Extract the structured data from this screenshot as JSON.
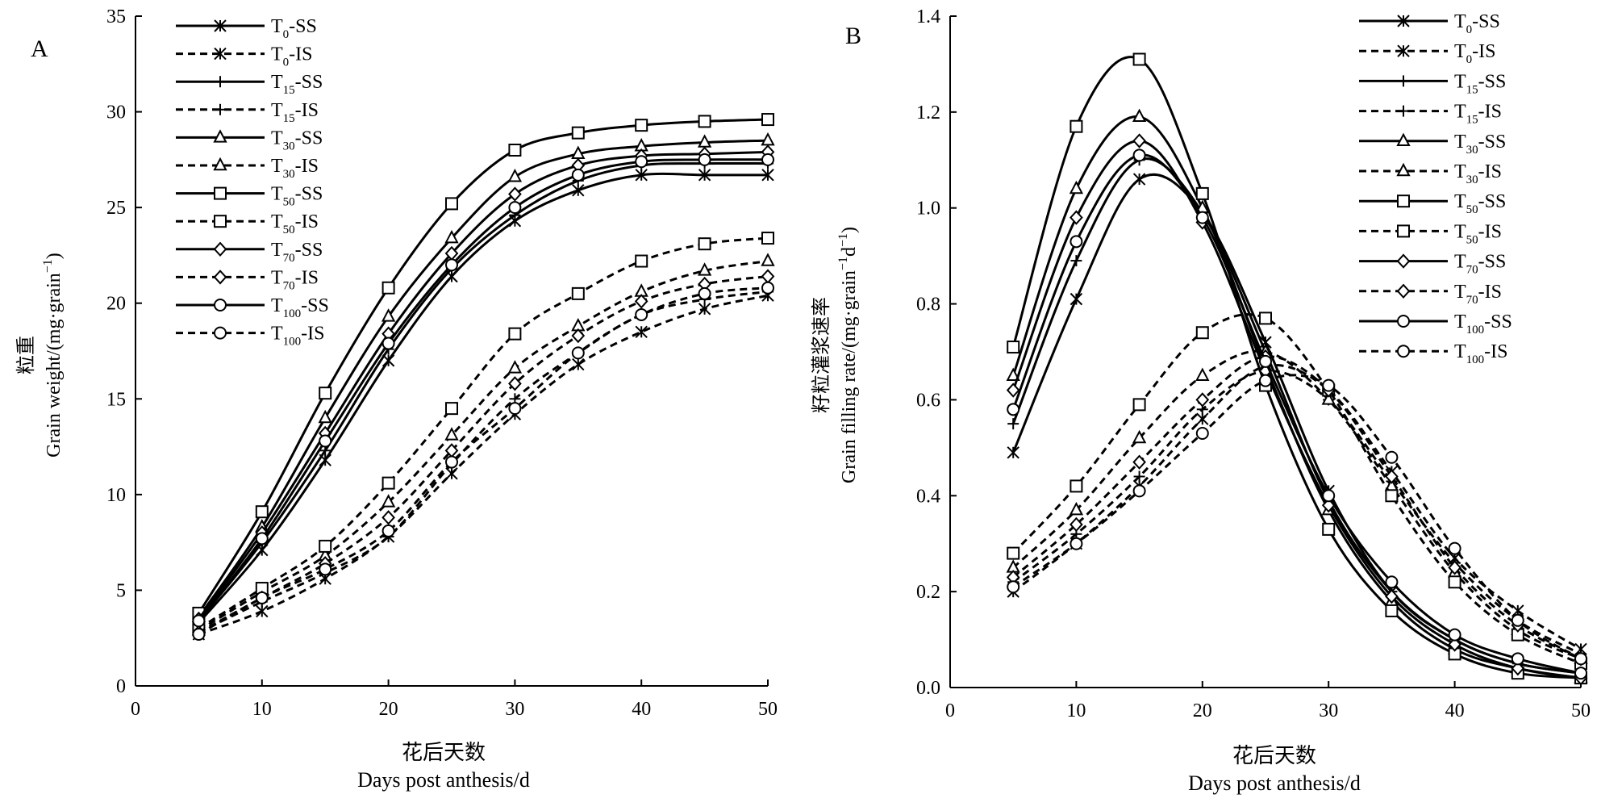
{
  "figure": {
    "panel_a_label": "A",
    "panel_b_label": "B"
  },
  "legend_entries": [
    {
      "base": "T",
      "sub": "0",
      "suffix": "-SS"
    },
    {
      "base": "T",
      "sub": "0",
      "suffix": "-IS"
    },
    {
      "base": "T",
      "sub": "15",
      "suffix": "-SS"
    },
    {
      "base": "T",
      "sub": "15",
      "suffix": "-IS"
    },
    {
      "base": "T",
      "sub": "30",
      "suffix": "-SS"
    },
    {
      "base": "T",
      "sub": "30",
      "suffix": "-IS"
    },
    {
      "base": "T",
      "sub": "50",
      "suffix": "-SS"
    },
    {
      "base": "T",
      "sub": "50",
      "suffix": "-IS"
    },
    {
      "base": "T",
      "sub": "70",
      "suffix": "-SS"
    },
    {
      "base": "T",
      "sub": "70",
      "suffix": "-IS"
    },
    {
      "base": "T",
      "sub": "100",
      "suffix": "-SS"
    },
    {
      "base": "T",
      "sub": "100",
      "suffix": "-IS"
    }
  ],
  "chart_data": [
    {
      "type": "line",
      "panel": "A",
      "ylabel_cn": "粒重",
      "ylabel_en": "Grain weight/(mg·grain",
      "ylabel_en_sup": "−1",
      "ylabel_en_end": ")",
      "xlabel_cn": "花后天数",
      "xlabel_en": "Days post anthesis/d",
      "xlim": [
        0,
        50
      ],
      "ylim": [
        0,
        35
      ],
      "xticks": [
        0,
        10,
        20,
        30,
        40,
        50
      ],
      "yticks": [
        0,
        5,
        10,
        15,
        20,
        25,
        30,
        35
      ],
      "x": [
        5,
        10,
        15,
        20,
        25,
        30,
        35,
        40,
        45,
        50
      ],
      "legend_position": "top-left",
      "series": [
        {
          "name": "T0-SS",
          "marker": "asterisk",
          "dash": false,
          "values": [
            3.3,
            7.1,
            11.8,
            17.0,
            21.4,
            24.3,
            25.9,
            26.7,
            26.7,
            26.7
          ]
        },
        {
          "name": "T0-IS",
          "marker": "asterisk",
          "dash": true,
          "values": [
            2.7,
            3.9,
            5.6,
            7.8,
            11.1,
            14.2,
            16.8,
            18.5,
            19.7,
            20.4
          ]
        },
        {
          "name": "T15-SS",
          "marker": "plus",
          "dash": false,
          "values": [
            3.4,
            7.5,
            12.3,
            17.6,
            21.8,
            24.6,
            26.4,
            27.2,
            27.3,
            27.3
          ]
        },
        {
          "name": "T15-IS",
          "marker": "plus",
          "dash": true,
          "values": [
            2.8,
            4.4,
            5.9,
            7.8,
            11.6,
            15.0,
            17.4,
            19.4,
            20.2,
            20.6
          ]
        },
        {
          "name": "T30-SS",
          "marker": "triangle",
          "dash": false,
          "values": [
            3.6,
            8.3,
            14.0,
            19.3,
            23.4,
            26.6,
            27.8,
            28.2,
            28.4,
            28.5
          ]
        },
        {
          "name": "T30-IS",
          "marker": "triangle",
          "dash": true,
          "values": [
            2.9,
            4.9,
            6.8,
            9.6,
            13.1,
            16.6,
            18.8,
            20.6,
            21.7,
            22.2
          ]
        },
        {
          "name": "T50-SS",
          "marker": "square",
          "dash": false,
          "values": [
            3.8,
            9.1,
            15.3,
            20.8,
            25.2,
            28.0,
            28.9,
            29.3,
            29.5,
            29.6
          ]
        },
        {
          "name": "T50-IS",
          "marker": "square",
          "dash": true,
          "values": [
            3.0,
            5.1,
            7.3,
            10.6,
            14.5,
            18.4,
            20.5,
            22.2,
            23.1,
            23.4
          ]
        },
        {
          "name": "T70-SS",
          "marker": "diamond",
          "dash": false,
          "values": [
            3.5,
            8.0,
            13.2,
            18.4,
            22.6,
            25.7,
            27.2,
            27.7,
            27.8,
            27.9
          ]
        },
        {
          "name": "T70-IS",
          "marker": "diamond",
          "dash": true,
          "values": [
            2.8,
            4.6,
            6.4,
            8.8,
            12.3,
            15.8,
            18.3,
            20.1,
            21.0,
            21.4
          ]
        },
        {
          "name": "T100-SS",
          "marker": "circle",
          "dash": false,
          "values": [
            3.4,
            7.7,
            12.8,
            17.9,
            22.0,
            25.0,
            26.7,
            27.4,
            27.5,
            27.5
          ]
        },
        {
          "name": "T100-IS",
          "marker": "circle",
          "dash": true,
          "values": [
            2.7,
            4.6,
            6.1,
            8.1,
            11.7,
            14.5,
            17.4,
            19.4,
            20.5,
            20.8
          ]
        }
      ]
    },
    {
      "type": "line",
      "panel": "B",
      "ylabel_cn": "籽粒灌浆速率",
      "ylabel_en": "Grain filling rate/(mg·grain",
      "ylabel_en_sup": "−1",
      "ylabel_en_mid": "d",
      "ylabel_en_end": ")",
      "xlabel_cn": "花后天数",
      "xlabel_en": "Days post anthesis/d",
      "xlim": [
        0,
        50
      ],
      "ylim": [
        0,
        1.4
      ],
      "xticks": [
        0,
        10,
        20,
        30,
        40,
        50
      ],
      "yticks": [
        "0.0",
        "0.2",
        "0.4",
        "0.6",
        "0.8",
        "1.0",
        "1.2",
        "1.4"
      ],
      "x": [
        5,
        10,
        15,
        20,
        25,
        30,
        35,
        40,
        45,
        50
      ],
      "legend_position": "top-right",
      "series": [
        {
          "name": "T0-SS",
          "marker": "asterisk",
          "dash": false,
          "values": [
            0.49,
            0.81,
            1.06,
            0.99,
            0.72,
            0.41,
            0.2,
            0.1,
            0.05,
            0.03
          ]
        },
        {
          "name": "T0-IS",
          "marker": "asterisk",
          "dash": true,
          "values": [
            0.2,
            0.3,
            0.42,
            0.56,
            0.67,
            0.62,
            0.45,
            0.27,
            0.16,
            0.08
          ]
        },
        {
          "name": "T15-SS",
          "marker": "plus",
          "dash": false,
          "values": [
            0.55,
            0.89,
            1.1,
            0.99,
            0.7,
            0.39,
            0.2,
            0.1,
            0.05,
            0.03
          ]
        },
        {
          "name": "T15-IS",
          "marker": "plus",
          "dash": true,
          "values": [
            0.22,
            0.32,
            0.44,
            0.58,
            0.66,
            0.6,
            0.43,
            0.26,
            0.14,
            0.07
          ]
        },
        {
          "name": "T30-SS",
          "marker": "triangle",
          "dash": false,
          "values": [
            0.65,
            1.04,
            1.19,
            1.0,
            0.67,
            0.37,
            0.18,
            0.08,
            0.04,
            0.02
          ]
        },
        {
          "name": "T30-IS",
          "marker": "triangle",
          "dash": true,
          "values": [
            0.25,
            0.37,
            0.52,
            0.65,
            0.7,
            0.6,
            0.42,
            0.24,
            0.12,
            0.06
          ]
        },
        {
          "name": "T50-SS",
          "marker": "square",
          "dash": false,
          "values": [
            0.71,
            1.17,
            1.31,
            1.03,
            0.63,
            0.33,
            0.16,
            0.07,
            0.03,
            0.02
          ]
        },
        {
          "name": "T50-IS",
          "marker": "square",
          "dash": true,
          "values": [
            0.28,
            0.42,
            0.59,
            0.74,
            0.77,
            0.62,
            0.4,
            0.22,
            0.11,
            0.05
          ]
        },
        {
          "name": "T70-SS",
          "marker": "diamond",
          "dash": false,
          "values": [
            0.62,
            0.98,
            1.14,
            0.97,
            0.66,
            0.38,
            0.19,
            0.09,
            0.04,
            0.02
          ]
        },
        {
          "name": "T70-IS",
          "marker": "diamond",
          "dash": true,
          "values": [
            0.23,
            0.34,
            0.47,
            0.6,
            0.69,
            0.62,
            0.44,
            0.25,
            0.13,
            0.06
          ]
        },
        {
          "name": "T100-SS",
          "marker": "circle",
          "dash": false,
          "values": [
            0.58,
            0.93,
            1.11,
            0.98,
            0.68,
            0.4,
            0.22,
            0.11,
            0.06,
            0.03
          ]
        },
        {
          "name": "T100-IS",
          "marker": "circle",
          "dash": true,
          "values": [
            0.21,
            0.3,
            0.41,
            0.53,
            0.64,
            0.63,
            0.48,
            0.29,
            0.14,
            0.06
          ]
        }
      ]
    }
  ]
}
